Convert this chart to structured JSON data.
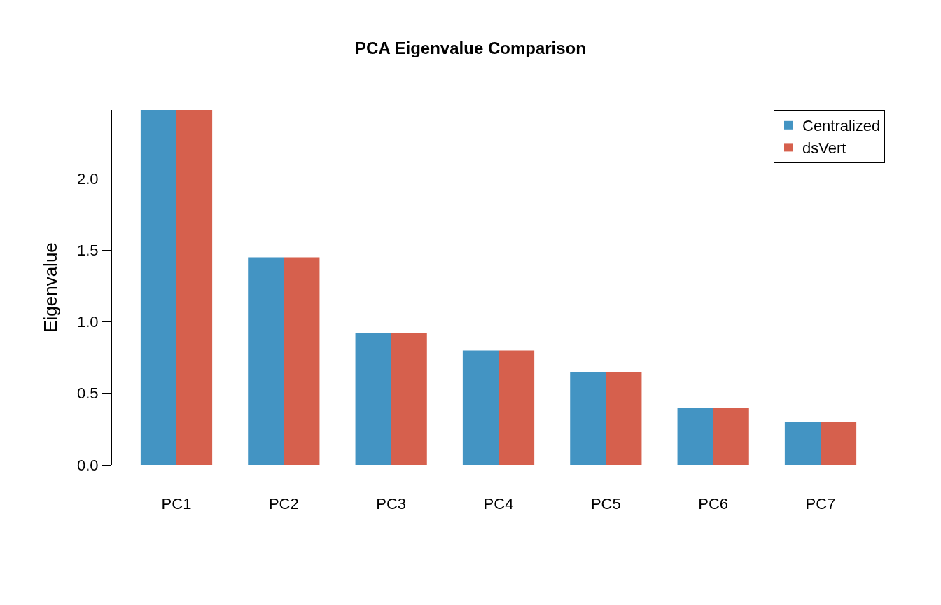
{
  "chart_data": {
    "type": "bar",
    "title": "PCA Eigenvalue Comparison",
    "ylabel": "Eigenvalue",
    "categories": [
      "PC1",
      "PC2",
      "PC3",
      "PC4",
      "PC5",
      "PC6",
      "PC7"
    ],
    "series": [
      {
        "name": "Centralized",
        "color": "#4394c3",
        "values": [
          2.48,
          1.45,
          0.92,
          0.8,
          0.65,
          0.4,
          0.3
        ]
      },
      {
        "name": "dsVert",
        "color": "#d6604d",
        "values": [
          2.48,
          1.45,
          0.92,
          0.8,
          0.65,
          0.4,
          0.3
        ]
      }
    ],
    "ylim": [
      0,
      2.48
    ],
    "yticks": [
      {
        "value": 0,
        "label": "0.0"
      },
      {
        "value": 0.5,
        "label": "0.5"
      },
      {
        "value": 1,
        "label": "1.0"
      },
      {
        "value": 1.5,
        "label": "1.5"
      },
      {
        "value": 2,
        "label": "2.0"
      }
    ],
    "legend": "top right"
  }
}
